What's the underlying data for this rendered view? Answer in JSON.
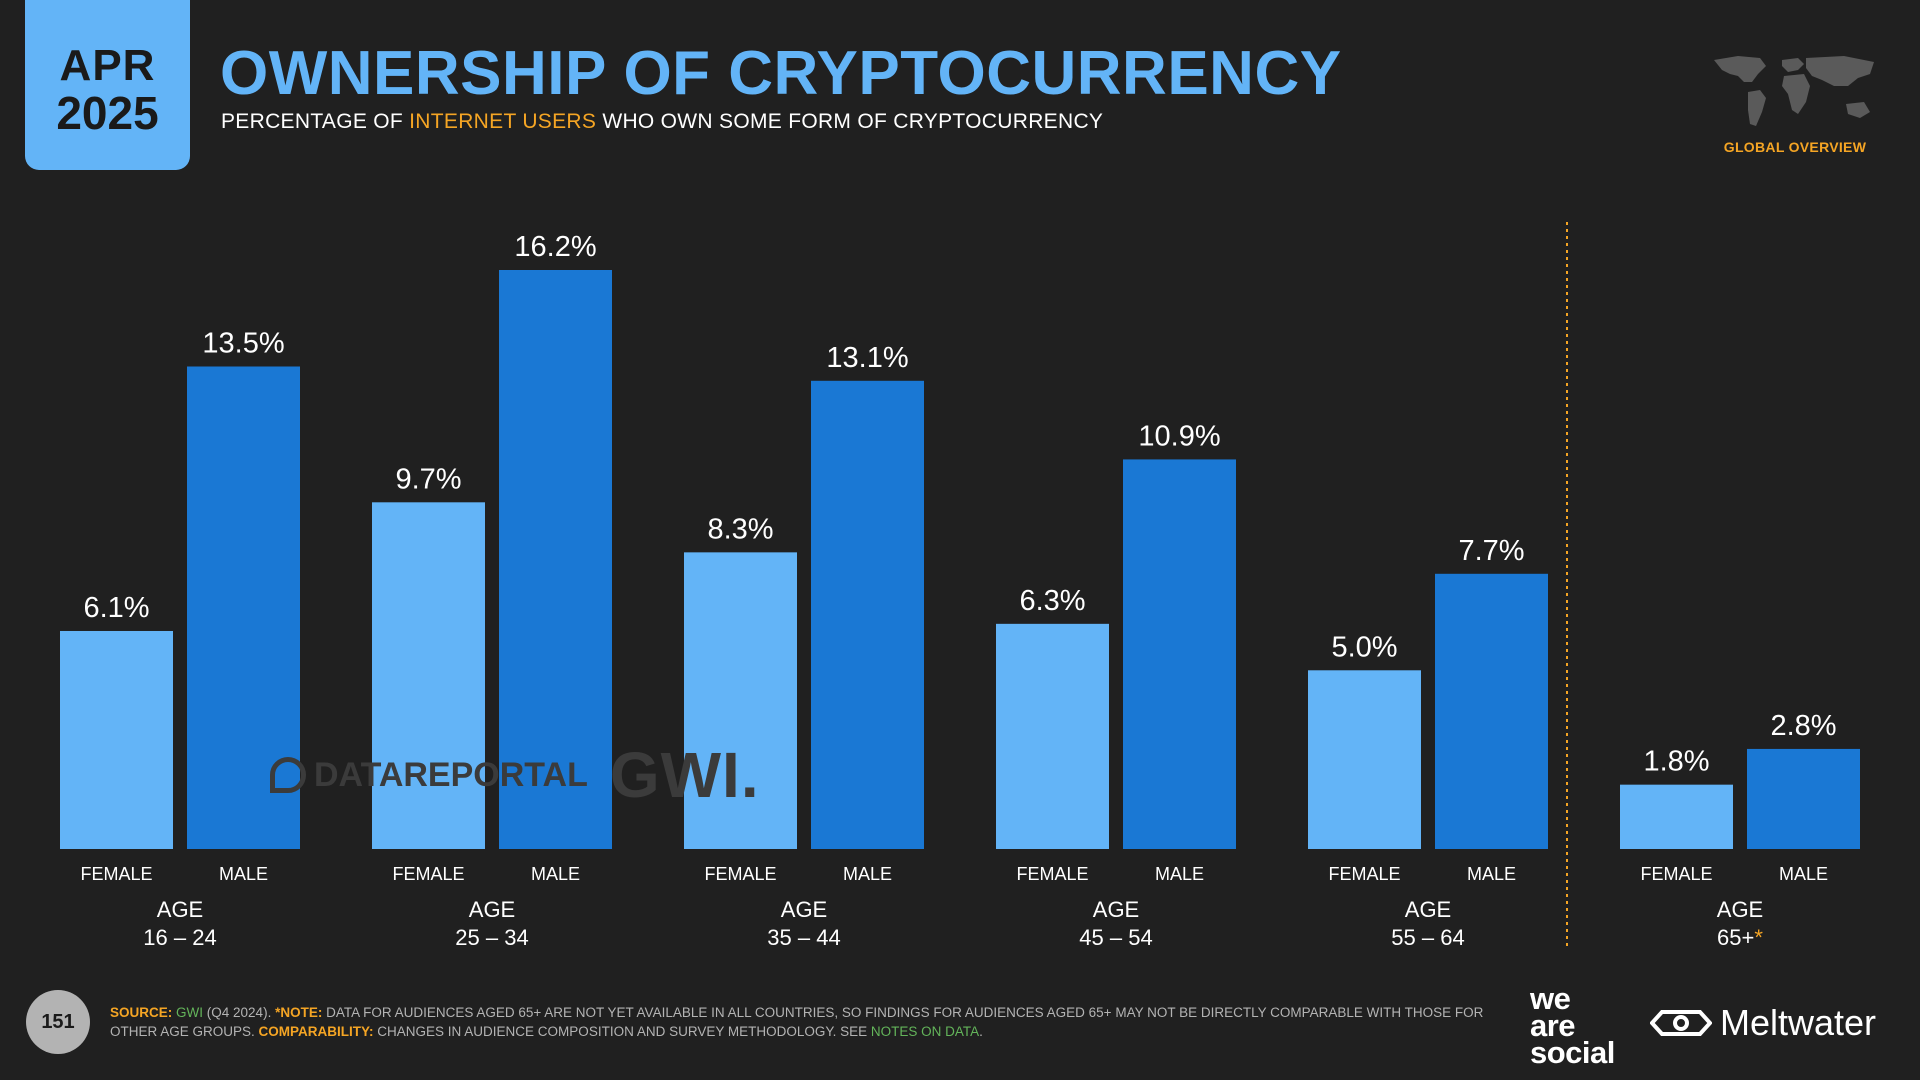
{
  "header": {
    "month": "APR",
    "year": "2025",
    "title": "OWNERSHIP OF CRYPTOCURRENCY",
    "subtitle_pre": "PERCENTAGE OF ",
    "subtitle_highlight": "INTERNET USERS",
    "subtitle_post": " WHO OWN SOME FORM OF CRYPTOCURRENCY",
    "region_label": "GLOBAL OVERVIEW"
  },
  "watermark": {
    "datareportal": "DATAREPORTAL",
    "gwi": "GWI."
  },
  "chart_data": {
    "type": "bar",
    "groups": [
      {
        "age_label": "AGE",
        "age_range": "16 – 24",
        "female": 6.1,
        "male": 13.5
      },
      {
        "age_label": "AGE",
        "age_range": "25 – 34",
        "female": 9.7,
        "male": 16.2
      },
      {
        "age_label": "AGE",
        "age_range": "35 – 44",
        "female": 8.3,
        "male": 13.1
      },
      {
        "age_label": "AGE",
        "age_range": "45 – 54",
        "female": 6.3,
        "male": 10.9
      },
      {
        "age_label": "AGE",
        "age_range": "55 – 64",
        "female": 5.0,
        "male": 7.7
      },
      {
        "age_label": "AGE",
        "age_range": "65+",
        "age_suffix": "*",
        "female": 1.8,
        "male": 2.8
      }
    ],
    "series_labels": {
      "female": "FEMALE",
      "male": "MALE"
    },
    "colors": {
      "female": "#63b4f7",
      "male": "#1a78d4",
      "divider": "#f5a524",
      "asterisk": "#f5a524"
    },
    "value_suffix": "%",
    "ylim": [
      0,
      16.2
    ],
    "divider_before_group": 5
  },
  "footer": {
    "page_number": "151",
    "source_label": "SOURCE:",
    "source_name": "GWI",
    "source_period": " (Q4 2024). ",
    "note_label": "*NOTE:",
    "note_text": " DATA FOR AUDIENCES AGED 65+ ARE NOT YET AVAILABLE IN ALL COUNTRIES, SO FINDINGS FOR AUDIENCES AGED 65+ MAY NOT BE DIRECTLY COMPARABLE WITH THOSE FOR OTHER AGE GROUPS. ",
    "comparability_label": "COMPARABILITY:",
    "comparability_text": " CHANGES IN AUDIENCE COMPOSITION AND SURVEY METHODOLOGY. SEE ",
    "notes_link": "NOTES ON DATA",
    "notes_end": ".",
    "brand_we": "we",
    "brand_are": "are",
    "brand_social": "social",
    "brand_meltwater": "Meltwater"
  }
}
